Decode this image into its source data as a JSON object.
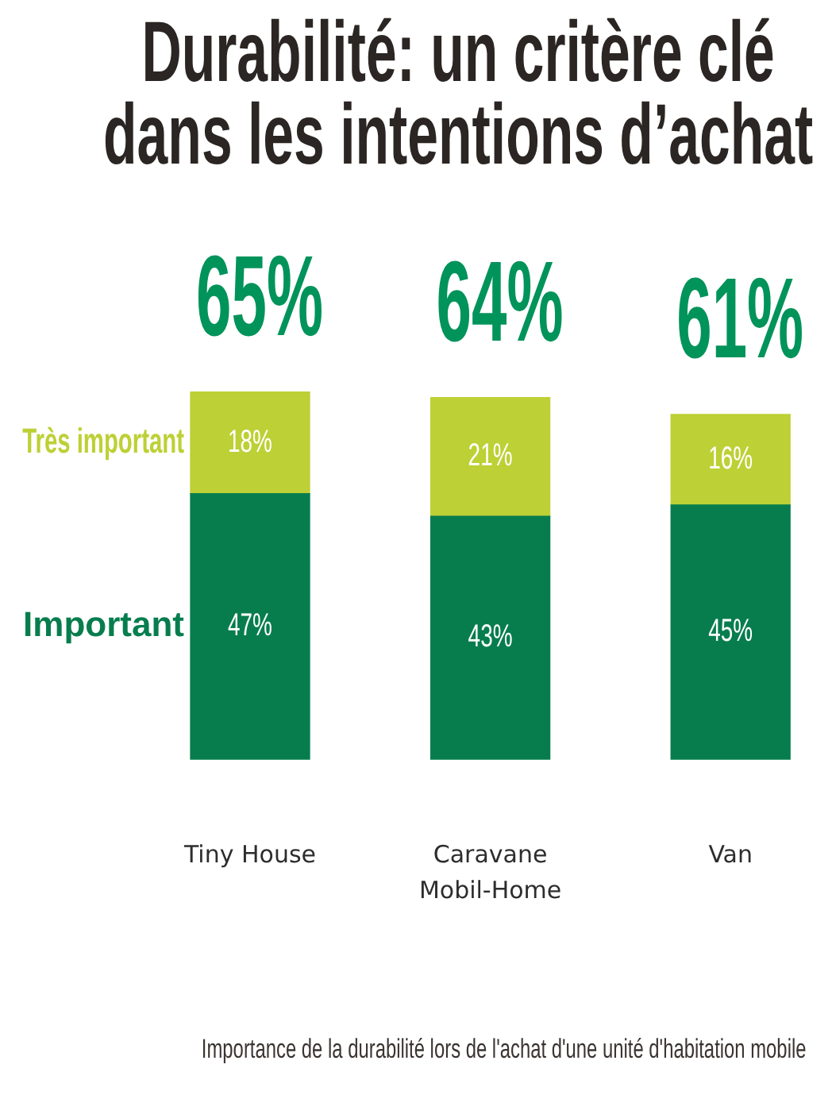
{
  "chart_data": {
    "type": "bar",
    "title": "Durabilité: un critère clé\ndans les intentions d’achat",
    "categories": [
      "Tiny House",
      "Caravane\nMobil-Home",
      "Van"
    ],
    "stacked": true,
    "series": [
      {
        "name": "Important",
        "color": "#077d4e",
        "values": [
          47,
          43,
          45
        ],
        "value_labels": [
          "47%",
          "43%",
          "45%"
        ]
      },
      {
        "name": "Très important",
        "color": "#bdd035",
        "values": [
          18,
          21,
          16
        ],
        "value_labels": [
          "18%",
          "21%",
          "16%"
        ]
      }
    ],
    "totals": [
      "65%",
      "64%",
      "61%"
    ],
    "annotations": [
      "Importance de la durabilité lors de l'achat d'une unité d'habitation mobile"
    ]
  }
}
